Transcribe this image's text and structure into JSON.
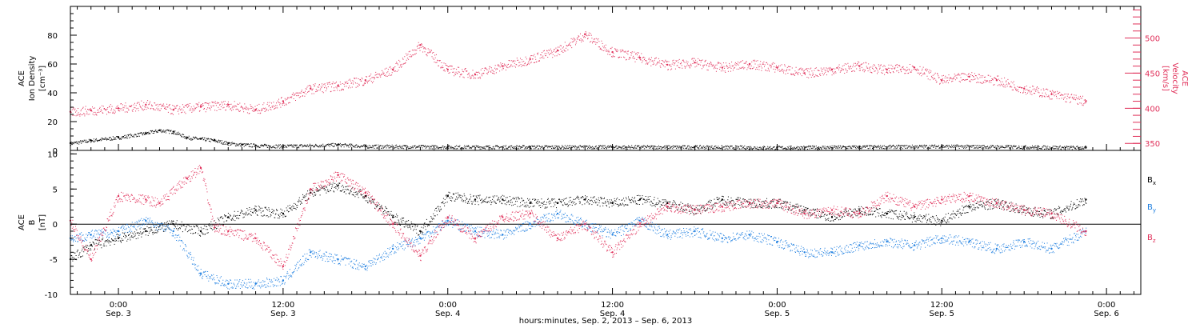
{
  "chart_data": [
    {
      "type": "scatter",
      "panel": "top",
      "ylabel_left": [
        "ACE",
        "Ion Density",
        "[cm⁻³]"
      ],
      "ylabel_right": [
        "ACE",
        "Velocity",
        "[km/s]"
      ],
      "ylim_left": [
        0,
        100
      ],
      "ylim_right": [
        340,
        545
      ],
      "yticks_left": [
        0,
        20,
        40,
        60,
        80
      ],
      "yticks_right": [
        350,
        400,
        450,
        500
      ],
      "xlim_hours": [
        -3.5,
        74.5
      ],
      "series": [
        {
          "axis": "left",
          "color": "#000000",
          "x": [
            -3.5,
            -2,
            0,
            2,
            3,
            4,
            5,
            6,
            7,
            8,
            9,
            10,
            12,
            16,
            18,
            24,
            30,
            36,
            42,
            48,
            54,
            60,
            66,
            70.5
          ],
          "y": [
            5,
            7,
            9,
            12,
            14,
            13,
            9,
            8,
            7,
            5,
            4,
            3.5,
            3,
            4,
            3,
            2.5,
            2.5,
            2.5,
            2.5,
            2,
            2.5,
            3,
            2.5,
            2
          ]
        },
        {
          "axis": "right",
          "color": "#e0305a",
          "x": [
            -3.5,
            -2,
            0,
            2,
            4,
            6,
            8,
            10,
            12,
            14,
            16,
            18,
            20,
            22,
            24,
            26,
            28,
            30,
            32,
            34,
            36,
            38,
            40,
            42,
            44,
            46,
            48,
            50,
            52,
            54,
            56,
            58,
            60,
            62,
            64,
            66,
            68,
            70.5
          ],
          "y": [
            395,
            397,
            400,
            405,
            398,
            402,
            405,
            398,
            410,
            428,
            432,
            440,
            455,
            490,
            455,
            448,
            460,
            470,
            482,
            505,
            480,
            472,
            462,
            465,
            458,
            463,
            458,
            450,
            455,
            460,
            455,
            458,
            440,
            445,
            440,
            428,
            420,
            410
          ]
        }
      ]
    },
    {
      "type": "scatter",
      "panel": "bottom",
      "ylabel_left": [
        "ACE",
        "B",
        "[nT]"
      ],
      "ylim": [
        -10,
        10.5
      ],
      "yticks": [
        -10,
        -5,
        0,
        5,
        10
      ],
      "zero_line": true,
      "xlim_hours": [
        -3.5,
        74.5
      ],
      "series": [
        {
          "name": "Bx",
          "color": "#000000",
          "x": [
            -3.5,
            -2,
            0,
            2,
            4,
            6,
            8,
            10,
            12,
            14,
            16,
            18,
            20,
            22,
            24,
            26,
            28,
            30,
            32,
            34,
            36,
            38,
            40,
            42,
            44,
            46,
            48,
            50,
            52,
            54,
            56,
            58,
            60,
            62,
            64,
            66,
            68,
            70.5
          ],
          "y": [
            -5,
            -3,
            -2,
            -1,
            0,
            -1,
            1,
            2,
            1.5,
            4.5,
            5.5,
            4,
            1,
            -1,
            4,
            3.5,
            3.5,
            3,
            3,
            3.5,
            3,
            3.5,
            3,
            2,
            3.5,
            3,
            3,
            2,
            1,
            2,
            1.5,
            1,
            0.5,
            2.5,
            3,
            2,
            1.5,
            3.5
          ]
        },
        {
          "name": "By",
          "color": "#1f7fe0",
          "x": [
            -3.5,
            -2,
            0,
            2,
            4,
            6,
            8,
            10,
            12,
            14,
            16,
            18,
            20,
            22,
            24,
            26,
            28,
            30,
            32,
            34,
            36,
            38,
            40,
            42,
            44,
            46,
            48,
            50,
            52,
            54,
            56,
            58,
            60,
            62,
            64,
            66,
            68,
            70.5
          ],
          "y": [
            -2,
            -1.5,
            -1,
            0.5,
            -1,
            -7,
            -8.5,
            -8.5,
            -8,
            -4,
            -5,
            -6,
            -3.5,
            -2,
            0.5,
            -1,
            -1.5,
            0,
            1.5,
            0,
            -1.5,
            0.5,
            -1.5,
            -1,
            -2,
            -1.5,
            -2.5,
            -4,
            -4,
            -3,
            -2.5,
            -3,
            -2,
            -2.5,
            -3.5,
            -2.5,
            -3.5,
            -1
          ]
        },
        {
          "name": "Bz",
          "color": "#e0305a",
          "x": [
            -3.5,
            -2,
            0,
            2,
            3,
            5,
            6,
            7,
            8,
            10,
            12,
            14,
            16,
            18,
            20,
            22,
            24,
            26,
            28,
            30,
            32,
            34,
            36,
            38,
            40,
            42,
            44,
            46,
            48,
            50,
            52,
            54,
            56,
            58,
            60,
            62,
            64,
            66,
            68,
            70.5
          ],
          "y": [
            0.5,
            -5,
            4,
            3.5,
            3,
            6.5,
            8,
            -0.5,
            -1,
            -2,
            -6,
            5,
            7,
            4.5,
            0,
            -4.5,
            1,
            -2,
            1,
            1.5,
            -2,
            0,
            -4,
            0,
            2.5,
            2,
            2.5,
            3,
            3,
            1.5,
            2,
            1.5,
            4,
            2.5,
            3.5,
            4,
            3,
            2,
            1.5,
            -1
          ]
        }
      ],
      "legend": [
        "Bx",
        "By",
        "Bz"
      ]
    }
  ],
  "x_axis": {
    "tick_hours": [
      0,
      12,
      24,
      36,
      48,
      60,
      72
    ],
    "tick_time_labels": [
      "0:00",
      "12:00",
      "0:00",
      "12:00",
      "0:00",
      "12:00",
      "0:00"
    ],
    "tick_date_labels": [
      "Sep. 3",
      "Sep. 3",
      "Sep. 4",
      "Sep. 4",
      "Sep. 5",
      "Sep. 5",
      "Sep. 6"
    ],
    "minor_step_hours": 1,
    "title": "hours:minutes, Sep.  2, 2013 – Sep.  6, 2013"
  },
  "legend_labels": {
    "bx_base": "B",
    "bx_sub": "x",
    "by_base": "B",
    "by_sub": "y",
    "bz_base": "B",
    "bz_sub": "z"
  },
  "colors": {
    "black": "#000000",
    "pink": "#e0305a",
    "blue": "#1f7fe0"
  }
}
